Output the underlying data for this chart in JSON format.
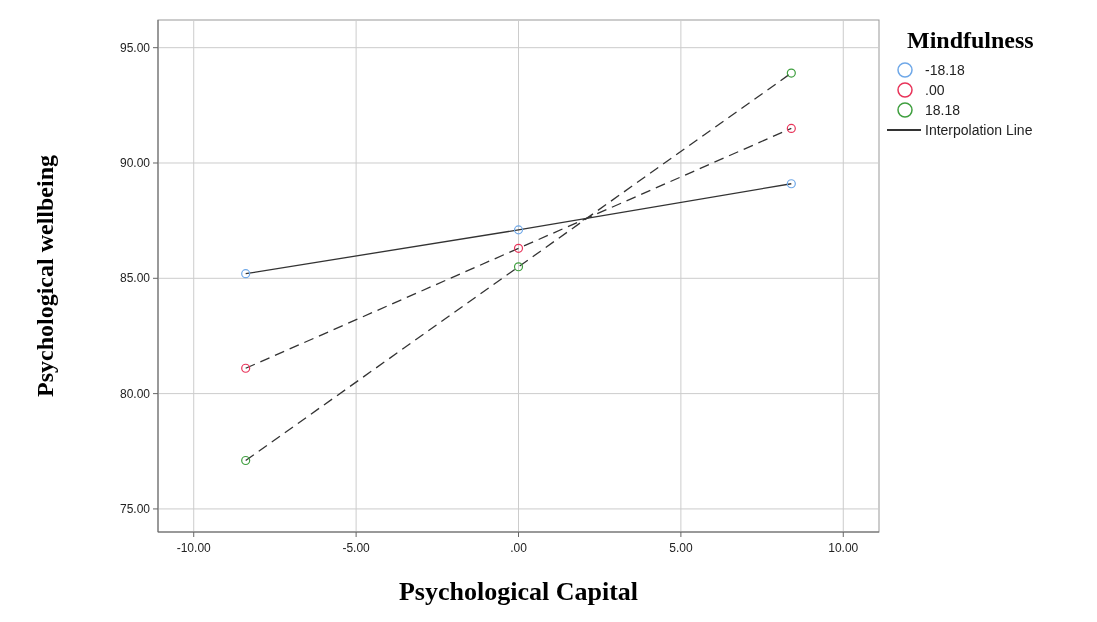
{
  "chart_data": {
    "type": "line",
    "xlabel": "Psychological Capital",
    "ylabel": "Psychological wellbeing",
    "legend_title": "Mindfulness",
    "x": [
      -8.4,
      0,
      8.4
    ],
    "series": [
      {
        "name": "-18.18",
        "color": "#6fa8e8",
        "values": [
          85.2,
          87.1,
          89.1
        ],
        "line_style": "solid"
      },
      {
        "name": ".00",
        "color": "#e8345a",
        "values": [
          81.1,
          86.3,
          91.5
        ],
        "line_style": "dashed"
      },
      {
        "name": "18.18",
        "color": "#3f9f3f",
        "values": [
          77.1,
          85.5,
          93.9
        ],
        "line_style": "dashed"
      }
    ],
    "annotations": [
      "Interpolation Line"
    ],
    "marker": "circle",
    "grid": true,
    "legend": "top right",
    "xlim": [
      -11.1,
      11.1
    ],
    "ylim": [
      74,
      96.2
    ],
    "xticks": [
      {
        "value": -10,
        "label": "-10.00"
      },
      {
        "value": -5,
        "label": "-5.00"
      },
      {
        "value": 0,
        "label": ".00"
      },
      {
        "value": 5,
        "label": "5.00"
      },
      {
        "value": 10,
        "label": "10.00"
      }
    ],
    "yticks": [
      {
        "value": 75,
        "label": "75.00"
      },
      {
        "value": 80,
        "label": "80.00"
      },
      {
        "value": 85,
        "label": "85.00"
      },
      {
        "value": 90,
        "label": "90.00"
      },
      {
        "value": 95,
        "label": "95.00"
      }
    ]
  }
}
